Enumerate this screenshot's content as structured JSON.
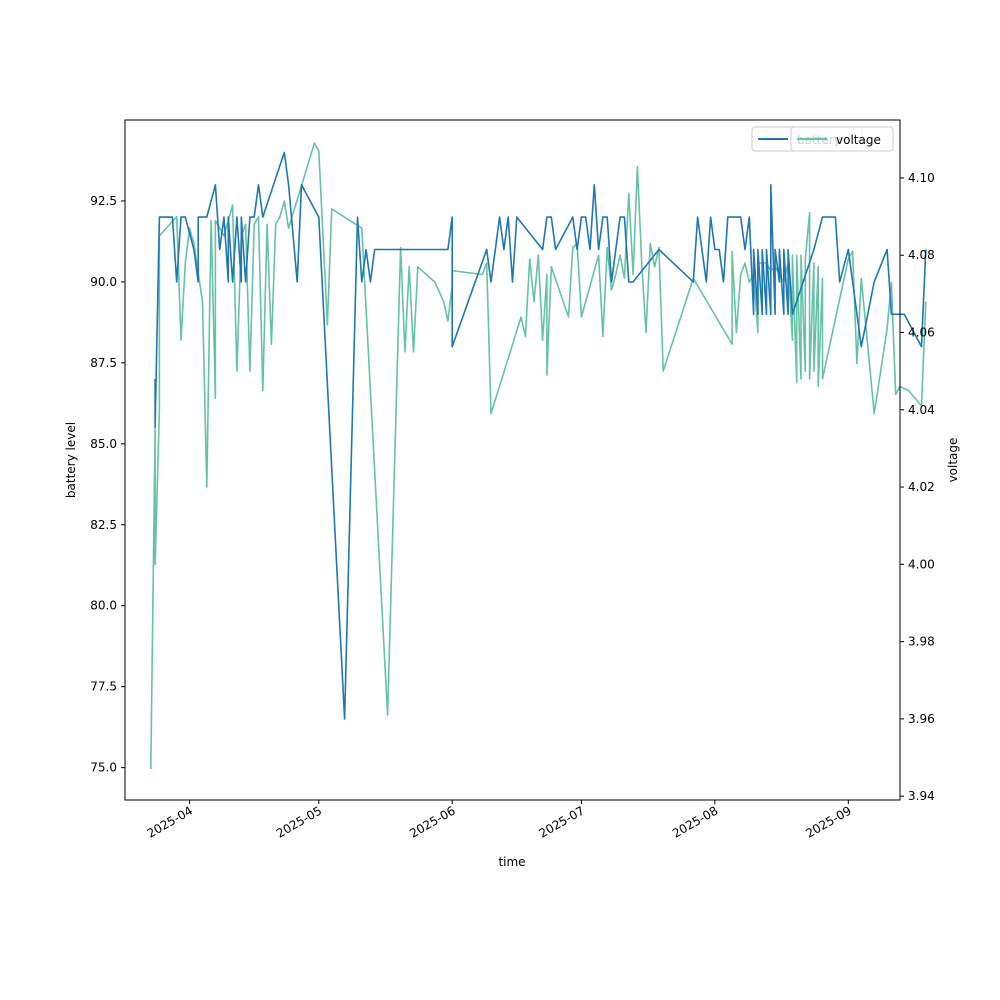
{
  "chart_data": {
    "type": "line",
    "xlabel": "time",
    "ylabel": "battery level",
    "y2label": "voltage",
    "x_ticks": [
      "2025-04",
      "2025-05",
      "2025-06",
      "2025-07",
      "2025-08",
      "2025-09"
    ],
    "y_ticks": [
      "75.0",
      "77.5",
      "80.0",
      "82.5",
      "85.0",
      "87.5",
      "90.0",
      "92.5"
    ],
    "y2_ticks": [
      "3.94",
      "3.96",
      "3.98",
      "4.00",
      "4.02",
      "4.04",
      "4.06",
      "4.08",
      "4.10"
    ],
    "xlim": [
      "2025-03-17",
      "2025-09-13"
    ],
    "ylim": [
      74.0,
      95.0
    ],
    "y2lim": [
      3.939,
      4.115
    ],
    "grid": false,
    "legend_position": "top-right",
    "series": [
      {
        "name": "battery",
        "axis": "left",
        "color": "#1f77b4",
        "points": [
          [
            "2025-03-24",
            87.0
          ],
          [
            "2025-03-24",
            85.5
          ],
          [
            "2025-03-25",
            92.0
          ],
          [
            "2025-03-28",
            92.0
          ],
          [
            "2025-03-29",
            90.0
          ],
          [
            "2025-03-30",
            92.0
          ],
          [
            "2025-03-31",
            92.0
          ],
          [
            "2025-04-02",
            91.0
          ],
          [
            "2025-04-03",
            90.0
          ],
          [
            "2025-04-03",
            92.0
          ],
          [
            "2025-04-05",
            92.0
          ],
          [
            "2025-04-07",
            93.0
          ],
          [
            "2025-04-08",
            91.0
          ],
          [
            "2025-04-09",
            92.0
          ],
          [
            "2025-04-10",
            90.0
          ],
          [
            "2025-04-10",
            92.0
          ],
          [
            "2025-04-11",
            90.0
          ],
          [
            "2025-04-12",
            92.0
          ],
          [
            "2025-04-13",
            90.0
          ],
          [
            "2025-04-13",
            92.0
          ],
          [
            "2025-04-14",
            90.0
          ],
          [
            "2025-04-15",
            92.0
          ],
          [
            "2025-04-16",
            92.0
          ],
          [
            "2025-04-17",
            93.0
          ],
          [
            "2025-04-18",
            92.0
          ],
          [
            "2025-04-23",
            94.0
          ],
          [
            "2025-04-24",
            93.0
          ],
          [
            "2025-04-26",
            90.0
          ],
          [
            "2025-04-27",
            93.0
          ],
          [
            "2025-05-01",
            92.0
          ],
          [
            "2025-05-07",
            76.5
          ],
          [
            "2025-05-10",
            92.0
          ],
          [
            "2025-05-11",
            90.0
          ],
          [
            "2025-05-12",
            91.0
          ],
          [
            "2025-05-13",
            90.0
          ],
          [
            "2025-05-14",
            91.0
          ],
          [
            "2025-05-31",
            91.0
          ],
          [
            "2025-06-01",
            92.0
          ],
          [
            "2025-06-01",
            88.0
          ],
          [
            "2025-06-09",
            91.0
          ],
          [
            "2025-06-10",
            90.0
          ],
          [
            "2025-06-12",
            92.0
          ],
          [
            "2025-06-13",
            91.0
          ],
          [
            "2025-06-14",
            92.0
          ],
          [
            "2025-06-15",
            90.0
          ],
          [
            "2025-06-16",
            92.0
          ],
          [
            "2025-06-22",
            91.0
          ],
          [
            "2025-06-23",
            92.0
          ],
          [
            "2025-06-24",
            92.0
          ],
          [
            "2025-06-25",
            91.0
          ],
          [
            "2025-06-29",
            92.0
          ],
          [
            "2025-06-30",
            91.0
          ],
          [
            "2025-07-01",
            92.0
          ],
          [
            "2025-07-02",
            92.0
          ],
          [
            "2025-07-03",
            91.0
          ],
          [
            "2025-07-04",
            93.0
          ],
          [
            "2025-07-05",
            91.0
          ],
          [
            "2025-07-06",
            92.0
          ],
          [
            "2025-07-07",
            92.0
          ],
          [
            "2025-07-08",
            90.0
          ],
          [
            "2025-07-09",
            91.0
          ],
          [
            "2025-07-10",
            92.0
          ],
          [
            "2025-07-11",
            92.0
          ],
          [
            "2025-07-12",
            90.0
          ],
          [
            "2025-07-13",
            90.0
          ],
          [
            "2025-07-19",
            91.0
          ],
          [
            "2025-07-27",
            90.0
          ],
          [
            "2025-07-28",
            92.0
          ],
          [
            "2025-07-30",
            90.0
          ],
          [
            "2025-07-31",
            92.0
          ],
          [
            "2025-08-01",
            91.0
          ],
          [
            "2025-08-02",
            91.0
          ],
          [
            "2025-08-03",
            90.0
          ],
          [
            "2025-08-04",
            92.0
          ],
          [
            "2025-08-07",
            92.0
          ],
          [
            "2025-08-08",
            91.0
          ],
          [
            "2025-08-09",
            92.0
          ],
          [
            "2025-08-10",
            89.0
          ],
          [
            "2025-08-10",
            91.0
          ],
          [
            "2025-08-11",
            89.0
          ],
          [
            "2025-08-11",
            91.0
          ],
          [
            "2025-08-12",
            89.0
          ],
          [
            "2025-08-12",
            91.0
          ],
          [
            "2025-08-13",
            89.0
          ],
          [
            "2025-08-13",
            91.0
          ],
          [
            "2025-08-14",
            89.0
          ],
          [
            "2025-08-14",
            93.0
          ],
          [
            "2025-08-15",
            89.0
          ],
          [
            "2025-08-15",
            91.0
          ],
          [
            "2025-08-16",
            90.0
          ],
          [
            "2025-08-16",
            91.0
          ],
          [
            "2025-08-17",
            89.0
          ],
          [
            "2025-08-17",
            91.0
          ],
          [
            "2025-08-18",
            89.0
          ],
          [
            "2025-08-18",
            91.0
          ],
          [
            "2025-08-19",
            89.0
          ],
          [
            "2025-08-24",
            91.0
          ],
          [
            "2025-08-26",
            92.0
          ],
          [
            "2025-08-29",
            92.0
          ],
          [
            "2025-08-30",
            90.0
          ],
          [
            "2025-09-01",
            91.0
          ],
          [
            "2025-09-04",
            88.0
          ],
          [
            "2025-09-07",
            90.0
          ],
          [
            "2025-09-10",
            91.0
          ],
          [
            "2025-09-11",
            89.0
          ],
          [
            "2025-09-14",
            89.0
          ],
          [
            "2025-09-18",
            88.0
          ],
          [
            "2025-09-19",
            91.0
          ]
        ]
      },
      {
        "name": "voltage",
        "axis": "right",
        "color": "#66c2a5",
        "points": [
          [
            "2025-03-23",
            3.947
          ],
          [
            "2025-03-24",
            4.035
          ],
          [
            "2025-03-24",
            4.0
          ],
          [
            "2025-03-25",
            4.04
          ],
          [
            "2025-03-25",
            4.085
          ],
          [
            "2025-03-29",
            4.09
          ],
          [
            "2025-03-30",
            4.058
          ],
          [
            "2025-03-31",
            4.078
          ],
          [
            "2025-04-01",
            4.087
          ],
          [
            "2025-04-02",
            4.083
          ],
          [
            "2025-04-04",
            4.068
          ],
          [
            "2025-04-05",
            4.02
          ],
          [
            "2025-04-06",
            4.089
          ],
          [
            "2025-04-07",
            4.043
          ],
          [
            "2025-04-07",
            4.089
          ],
          [
            "2025-04-09",
            4.085
          ],
          [
            "2025-04-11",
            4.093
          ],
          [
            "2025-04-12",
            4.05
          ],
          [
            "2025-04-13",
            4.085
          ],
          [
            "2025-04-14",
            4.088
          ],
          [
            "2025-04-15",
            4.05
          ],
          [
            "2025-04-16",
            4.088
          ],
          [
            "2025-04-17",
            4.09
          ],
          [
            "2025-04-18",
            4.045
          ],
          [
            "2025-04-19",
            4.088
          ],
          [
            "2025-04-20",
            4.057
          ],
          [
            "2025-04-21",
            4.088
          ],
          [
            "2025-04-22",
            4.09
          ],
          [
            "2025-04-23",
            4.094
          ],
          [
            "2025-04-24",
            4.087
          ],
          [
            "2025-04-30",
            4.109
          ],
          [
            "2025-05-01",
            4.107
          ],
          [
            "2025-05-03",
            4.062
          ],
          [
            "2025-05-04",
            4.092
          ],
          [
            "2025-05-11",
            4.087
          ],
          [
            "2025-05-17",
            3.961
          ],
          [
            "2025-05-20",
            4.082
          ],
          [
            "2025-05-21",
            4.055
          ],
          [
            "2025-05-22",
            4.077
          ],
          [
            "2025-05-23",
            4.055
          ],
          [
            "2025-05-24",
            4.077
          ],
          [
            "2025-05-28",
            4.073
          ],
          [
            "2025-05-30",
            4.068
          ],
          [
            "2025-05-31",
            4.063
          ],
          [
            "2025-06-01",
            4.072
          ],
          [
            "2025-06-01",
            4.076
          ],
          [
            "2025-06-08",
            4.075
          ],
          [
            "2025-06-09",
            4.078
          ],
          [
            "2025-06-10",
            4.039
          ],
          [
            "2025-06-17",
            4.064
          ],
          [
            "2025-06-18",
            4.059
          ],
          [
            "2025-06-19",
            4.079
          ],
          [
            "2025-06-20",
            4.068
          ],
          [
            "2025-06-21",
            4.08
          ],
          [
            "2025-06-22",
            4.058
          ],
          [
            "2025-06-23",
            4.075
          ],
          [
            "2025-06-23",
            4.049
          ],
          [
            "2025-06-24",
            4.077
          ],
          [
            "2025-06-28",
            4.064
          ],
          [
            "2025-06-29",
            4.082
          ],
          [
            "2025-06-30",
            4.083
          ],
          [
            "2025-07-01",
            4.064
          ],
          [
            "2025-07-05",
            4.08
          ],
          [
            "2025-07-06",
            4.059
          ],
          [
            "2025-07-07",
            4.082
          ],
          [
            "2025-07-08",
            4.071
          ],
          [
            "2025-07-09",
            4.075
          ],
          [
            "2025-07-10",
            4.08
          ],
          [
            "2025-07-11",
            4.074
          ],
          [
            "2025-07-12",
            4.096
          ],
          [
            "2025-07-13",
            4.075
          ],
          [
            "2025-07-14",
            4.103
          ],
          [
            "2025-07-15",
            4.078
          ],
          [
            "2025-07-16",
            4.06
          ],
          [
            "2025-07-17",
            4.083
          ],
          [
            "2025-07-18",
            4.077
          ],
          [
            "2025-07-19",
            4.082
          ],
          [
            "2025-07-20",
            4.05
          ],
          [
            "2025-07-27",
            4.074
          ],
          [
            "2025-08-05",
            4.057
          ],
          [
            "2025-08-05",
            4.081
          ],
          [
            "2025-08-06",
            4.06
          ],
          [
            "2025-08-07",
            4.075
          ],
          [
            "2025-08-08",
            4.078
          ],
          [
            "2025-08-09",
            4.073
          ],
          [
            "2025-08-10",
            4.075
          ],
          [
            "2025-08-11",
            4.06
          ],
          [
            "2025-08-11",
            4.078
          ],
          [
            "2025-08-13",
            4.078
          ],
          [
            "2025-08-14",
            4.076
          ],
          [
            "2025-08-15",
            4.077
          ],
          [
            "2025-08-16",
            4.075
          ],
          [
            "2025-08-17",
            4.073
          ],
          [
            "2025-08-18",
            4.078
          ],
          [
            "2025-08-19",
            4.058
          ],
          [
            "2025-08-19",
            4.08
          ],
          [
            "2025-08-20",
            4.047
          ],
          [
            "2025-08-20",
            4.08
          ],
          [
            "2025-08-21",
            4.048
          ],
          [
            "2025-08-21",
            4.08
          ],
          [
            "2025-08-22",
            4.05
          ],
          [
            "2025-08-22",
            4.079
          ],
          [
            "2025-08-23",
            4.091
          ],
          [
            "2025-08-23",
            4.048
          ],
          [
            "2025-08-24",
            4.078
          ],
          [
            "2025-08-24",
            4.05
          ],
          [
            "2025-08-25",
            4.077
          ],
          [
            "2025-08-25",
            4.046
          ],
          [
            "2025-08-26",
            4.074
          ],
          [
            "2025-08-26",
            4.048
          ],
          [
            "2025-09-01",
            4.079
          ],
          [
            "2025-09-02",
            4.081
          ],
          [
            "2025-09-03",
            4.052
          ],
          [
            "2025-09-04",
            4.074
          ],
          [
            "2025-09-07",
            4.039
          ],
          [
            "2025-09-10",
            4.061
          ],
          [
            "2025-09-11",
            4.073
          ],
          [
            "2025-09-12",
            4.044
          ],
          [
            "2025-09-13",
            4.046
          ],
          [
            "2025-09-15",
            4.045
          ],
          [
            "2025-09-18",
            4.041
          ],
          [
            "2025-09-19",
            4.068
          ]
        ]
      }
    ]
  }
}
